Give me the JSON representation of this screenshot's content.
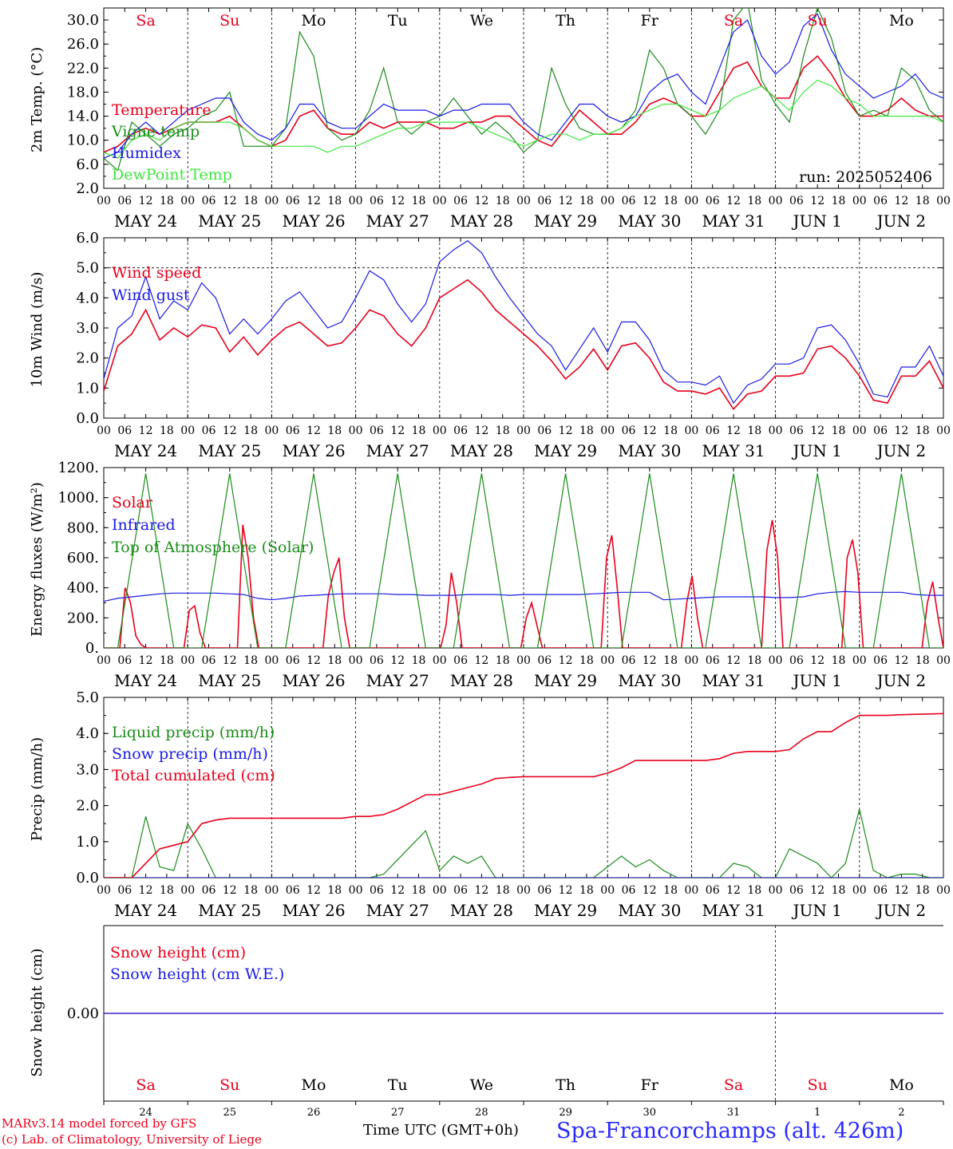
{
  "day_labels": [
    "Sa",
    "Su",
    "Mo",
    "Tu",
    "We",
    "Th",
    "Fr",
    "Sa",
    "Su",
    "Mo"
  ],
  "weekend_flags": [
    true,
    true,
    false,
    false,
    false,
    false,
    false,
    true,
    true,
    false
  ],
  "hour_ticks": [
    "00",
    "06",
    "12",
    "18"
  ],
  "final_hour_tick": "00",
  "date_labels": [
    "MAY 24",
    "MAY 25",
    "MAY 26",
    "MAY 27",
    "MAY 28",
    "MAY 29",
    "MAY 30",
    "MAY 31",
    "JUN  1",
    "JUN  2"
  ],
  "bottom_day_numbers": [
    "24",
    "25",
    "26",
    "27",
    "28",
    "29",
    "30",
    "31",
    "1",
    "2"
  ],
  "run_label": "run: 2025052406",
  "footer": {
    "credit_line1": "MARv3.14 model forced by GFS",
    "credit_line2": "(c) Lab. of Climatology, University of Liege",
    "xaxis_title": "Time UTC (GMT+0h)",
    "station": "Spa-Francorchamps (alt. 426m)"
  },
  "colors": {
    "red": "#e8001c",
    "green": "#1a8c1a",
    "blue": "#1a1ae6",
    "light_green": "#3ee83e",
    "black": "#000000"
  },
  "chart_data": [
    {
      "type": "line",
      "panel": "temperature",
      "ylabel": "2m Temp. (°C)",
      "ylim": [
        2,
        32
      ],
      "yticks": [
        "2.0",
        "6.0",
        "10.0",
        "14.0",
        "18.0",
        "22.0",
        "26.0",
        "30.0"
      ],
      "x": "hours since MAY 24 00 UTC, 6-hourly, 0-240",
      "series": [
        {
          "name": "Temperature",
          "color": "red",
          "values": [
            8,
            9,
            11,
            12,
            11,
            12,
            13,
            13,
            13,
            14,
            12,
            10,
            9,
            10,
            14,
            15,
            12,
            11,
            11,
            13,
            12,
            13,
            13,
            13,
            12,
            12,
            13,
            13,
            14,
            14,
            12,
            10,
            9,
            12,
            15,
            13,
            11,
            11,
            13,
            16,
            17,
            16,
            14,
            14,
            18,
            22,
            23,
            19,
            17,
            17,
            22,
            24,
            21,
            17,
            14,
            14,
            15,
            17,
            15,
            14,
            14
          ]
        },
        {
          "name": "Vigne temp",
          "color": "green",
          "values": [
            7,
            5,
            13,
            11,
            9,
            11,
            12,
            14,
            15,
            18,
            9,
            9,
            9,
            12,
            28,
            24,
            12,
            10,
            11,
            15,
            22,
            13,
            11,
            13,
            14,
            17,
            14,
            11,
            13,
            11,
            8,
            10,
            22,
            16,
            12,
            11,
            11,
            12,
            15,
            25,
            22,
            16,
            14,
            11,
            15,
            30,
            33,
            20,
            16,
            13,
            24,
            32,
            27,
            18,
            14,
            15,
            14,
            22,
            20,
            15,
            13
          ]
        },
        {
          "name": "Humidex",
          "color": "blue",
          "values": [
            7,
            8,
            11,
            13,
            11,
            13,
            15,
            16,
            17,
            17,
            13,
            11,
            10,
            12,
            16,
            16,
            13,
            12,
            12,
            14,
            16,
            15,
            15,
            15,
            14,
            15,
            15,
            16,
            16,
            16,
            13,
            11,
            10,
            13,
            16,
            16,
            14,
            13,
            14,
            18,
            20,
            21,
            18,
            16,
            22,
            28,
            30,
            24,
            21,
            23,
            29,
            31,
            25,
            21,
            19,
            17,
            18,
            19,
            21,
            18,
            17
          ]
        },
        {
          "name": "DewPoint Temp",
          "color": "light_green",
          "values": [
            8,
            7,
            10,
            11,
            10,
            12,
            13,
            13,
            13,
            13,
            12,
            10,
            9,
            9,
            9,
            9,
            8,
            9,
            9,
            10,
            11,
            12,
            12,
            13,
            13,
            13,
            13,
            12,
            11,
            10,
            9,
            10,
            11,
            11,
            10,
            11,
            11,
            12,
            14,
            15,
            16,
            16,
            15,
            14,
            15,
            17,
            18,
            19,
            17,
            15,
            18,
            20,
            19,
            17,
            16,
            14,
            14,
            14,
            14,
            14,
            13
          ]
        }
      ]
    },
    {
      "type": "line",
      "panel": "wind",
      "ylabel": "10m Wind (m/s)",
      "ylim": [
        0,
        6
      ],
      "yticks": [
        "0.0",
        "1.0",
        "2.0",
        "3.0",
        "4.0",
        "5.0",
        "6.0"
      ],
      "reference_line": 5.0,
      "series": [
        {
          "name": "Wind speed",
          "color": "red",
          "values": [
            0.9,
            2.4,
            2.8,
            3.6,
            2.6,
            3.0,
            2.7,
            3.1,
            3.0,
            2.2,
            2.7,
            2.1,
            2.6,
            3.0,
            3.2,
            2.8,
            2.4,
            2.5,
            3.0,
            3.6,
            3.4,
            2.8,
            2.4,
            3.0,
            4.0,
            4.3,
            4.6,
            4.2,
            3.6,
            3.2,
            2.8,
            2.4,
            1.9,
            1.3,
            1.7,
            2.3,
            1.6,
            2.4,
            2.5,
            2.0,
            1.2,
            0.9,
            0.9,
            0.8,
            1.0,
            0.3,
            0.8,
            0.9,
            1.4,
            1.4,
            1.5,
            2.3,
            2.4,
            2.0,
            1.4,
            0.6,
            0.5,
            1.4,
            1.4,
            1.9,
            1.0
          ]
        },
        {
          "name": "Wind gust",
          "color": "blue",
          "values": [
            1.3,
            3.0,
            3.4,
            4.7,
            3.3,
            3.9,
            3.6,
            4.5,
            4.0,
            2.8,
            3.3,
            2.8,
            3.3,
            3.9,
            4.2,
            3.6,
            3.0,
            3.2,
            4.0,
            4.9,
            4.6,
            3.8,
            3.2,
            3.8,
            5.2,
            5.6,
            5.9,
            5.5,
            4.7,
            4.0,
            3.4,
            2.8,
            2.4,
            1.6,
            2.3,
            3.0,
            2.2,
            3.2,
            3.2,
            2.6,
            1.6,
            1.2,
            1.2,
            1.1,
            1.4,
            0.5,
            1.1,
            1.3,
            1.8,
            1.8,
            2.0,
            3.0,
            3.1,
            2.6,
            1.8,
            0.8,
            0.7,
            1.7,
            1.7,
            2.4,
            1.4
          ]
        }
      ]
    },
    {
      "type": "line",
      "panel": "energy",
      "ylabel": "Energy fluxes (W/m²)",
      "ylim": [
        0,
        1200
      ],
      "yticks": [
        "0.",
        "200.",
        "400.",
        "600.",
        "800.",
        "1000.",
        "1200."
      ],
      "series": [
        {
          "name": "Solar",
          "color": "red",
          "values": [
            0,
            0,
            0,
            0,
            400,
            300,
            80,
            20,
            0,
            0,
            0,
            0,
            0,
            0,
            0,
            0,
            250,
            280,
            100,
            0,
            0,
            0,
            0,
            0,
            0,
            0,
            820,
            600,
            200,
            0,
            0,
            0,
            0,
            0,
            0,
            0,
            0,
            0,
            0,
            0,
            0,
            0,
            350,
            500,
            600,
            200,
            0,
            0,
            0,
            0,
            0,
            0,
            0,
            0,
            0,
            0,
            0,
            0,
            0,
            0,
            0,
            0,
            0,
            0,
            150,
            500,
            300,
            0,
            0,
            0,
            0,
            0,
            0,
            0,
            0,
            0,
            0,
            0,
            0,
            200,
            300,
            150,
            0,
            0,
            0,
            0,
            0,
            0,
            0,
            0,
            0,
            0,
            0,
            0,
            600,
            750,
            400,
            0,
            0,
            0,
            0,
            0,
            0,
            0,
            0,
            0,
            0,
            0,
            0,
            300,
            480,
            200,
            0,
            0,
            0,
            0,
            0,
            0,
            0,
            0,
            0,
            0,
            0,
            0,
            650,
            850,
            600,
            0,
            0,
            0,
            0,
            0,
            0,
            0,
            0,
            0,
            0,
            0,
            0,
            600,
            720,
            500,
            0,
            0,
            0,
            0,
            0,
            0,
            0,
            0,
            0,
            0,
            0,
            0,
            300,
            440,
            200,
            0
          ]
        },
        {
          "name": "Infrared",
          "color": "blue",
          "values": [
            310,
            330,
            340,
            350,
            360,
            365,
            365,
            365,
            365,
            360,
            355,
            330,
            320,
            330,
            345,
            350,
            355,
            360,
            360,
            360,
            360,
            355,
            355,
            350,
            350,
            350,
            355,
            355,
            355,
            350,
            355,
            355,
            355,
            355,
            355,
            360,
            365,
            370,
            370,
            370,
            320,
            325,
            330,
            335,
            340,
            340,
            340,
            340,
            335,
            335,
            340,
            360,
            370,
            375,
            370,
            370,
            370,
            370,
            355,
            350,
            350
          ]
        },
        {
          "name": "Top of Atmosphere (Solar)",
          "color": "green",
          "peak": 1160,
          "values": [
            0,
            0,
            580,
            1160,
            580,
            0,
            0,
            0,
            580,
            1160,
            580,
            0,
            0,
            0,
            580,
            1160,
            580,
            0,
            0,
            0,
            580,
            1160,
            580,
            0,
            0,
            0,
            580,
            1160,
            580,
            0,
            0,
            0,
            580,
            1160,
            580,
            0,
            0,
            0,
            580,
            1160,
            580,
            0,
            0,
            0,
            580,
            1160,
            580,
            0,
            0,
            0,
            580,
            1160,
            580,
            0,
            0,
            0,
            580,
            1160,
            580,
            0,
            0
          ]
        }
      ]
    },
    {
      "type": "line",
      "panel": "precip",
      "ylabel": "Precip (mm/h)",
      "ylim": [
        0,
        5
      ],
      "yticks": [
        "0.0",
        "1.0",
        "2.0",
        "3.0",
        "4.0",
        "5.0"
      ],
      "series": [
        {
          "name": "Liquid precip (mm/h)",
          "color": "green",
          "values": [
            0,
            0,
            0,
            1.7,
            0.3,
            0.2,
            1.5,
            0.8,
            0,
            0,
            0,
            0,
            0,
            0,
            0,
            0,
            0,
            0,
            0,
            0,
            0.1,
            0.5,
            0.9,
            1.3,
            0.2,
            0.6,
            0.4,
            0.6,
            0,
            0,
            0,
            0,
            0,
            0,
            0,
            0,
            0.3,
            0.6,
            0.3,
            0.5,
            0.2,
            0,
            0,
            0,
            0,
            0.4,
            0.3,
            0,
            0,
            0.8,
            0.6,
            0.4,
            0,
            0.4,
            1.9,
            0.2,
            0,
            0.1,
            0.1,
            0,
            0
          ]
        },
        {
          "name": "Snow precip (mm/h)",
          "color": "blue",
          "values": [
            0,
            0,
            0,
            0,
            0,
            0,
            0,
            0,
            0,
            0,
            0,
            0,
            0,
            0,
            0,
            0,
            0,
            0,
            0,
            0,
            0,
            0,
            0,
            0,
            0,
            0,
            0,
            0,
            0,
            0,
            0,
            0,
            0,
            0,
            0,
            0,
            0,
            0,
            0,
            0,
            0,
            0,
            0,
            0,
            0,
            0,
            0,
            0,
            0,
            0,
            0,
            0,
            0,
            0,
            0,
            0,
            0,
            0,
            0,
            0,
            0
          ]
        },
        {
          "name": "Total cumulated (cm)",
          "color": "red",
          "values": [
            0,
            0,
            0,
            0.4,
            0.8,
            0.9,
            1.0,
            1.5,
            1.6,
            1.65,
            1.65,
            1.65,
            1.65,
            1.65,
            1.65,
            1.65,
            1.65,
            1.65,
            1.7,
            1.7,
            1.75,
            1.9,
            2.1,
            2.3,
            2.3,
            2.4,
            2.5,
            2.6,
            2.75,
            2.78,
            2.8,
            2.8,
            2.8,
            2.8,
            2.8,
            2.8,
            2.9,
            3.05,
            3.25,
            3.25,
            3.25,
            3.25,
            3.25,
            3.25,
            3.3,
            3.45,
            3.5,
            3.5,
            3.5,
            3.55,
            3.85,
            4.05,
            4.05,
            4.3,
            4.5,
            4.5,
            4.5,
            4.52,
            4.53,
            4.54,
            4.55
          ]
        }
      ]
    },
    {
      "type": "line",
      "panel": "snow",
      "ylabel": "Snow height (cm)",
      "yticks": [
        "0.00"
      ],
      "series": [
        {
          "name": "Snow height (cm)",
          "color": "red",
          "values": [
            0,
            0
          ]
        },
        {
          "name": "Snow height (cm W.E.)",
          "color": "blue",
          "values": [
            0,
            0
          ]
        }
      ]
    }
  ]
}
